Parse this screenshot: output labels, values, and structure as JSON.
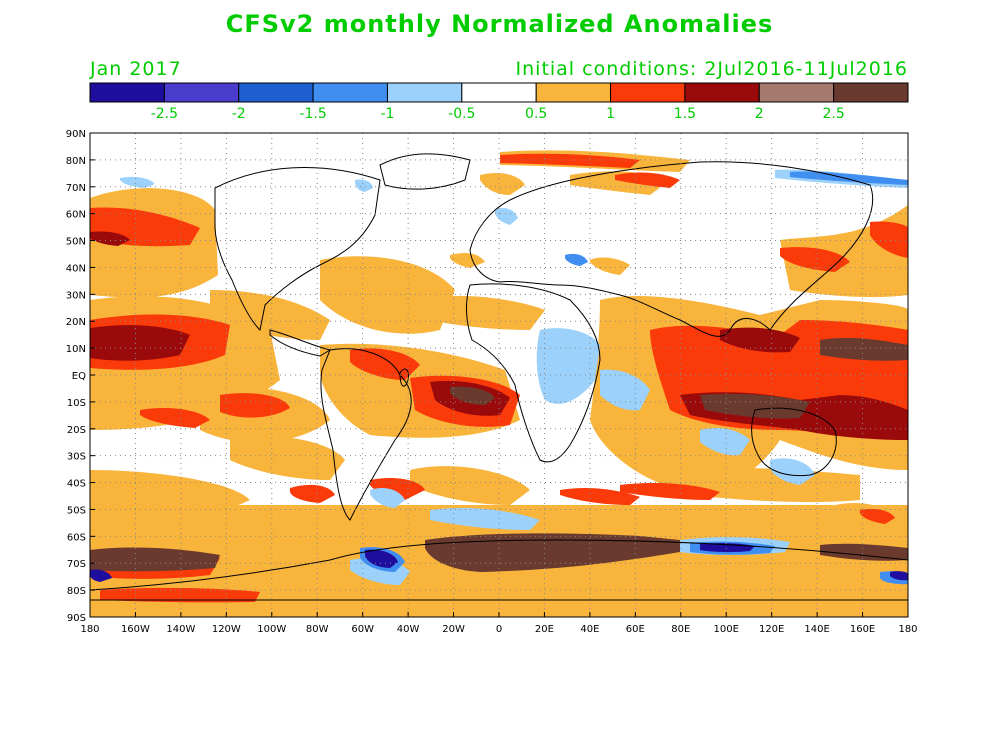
{
  "header": {
    "title": "CFSv2 monthly Normalized Anomalies",
    "period": "Jan 2017",
    "initial_conditions": "Initial conditions: 2Jul2016-11Jul2016",
    "text_color": "#00cc00"
  },
  "colorbar": {
    "colors": [
      "#1f0d9e",
      "#4a3ccc",
      "#1e5fd0",
      "#3f8ef0",
      "#9bd1fa",
      "#ffffff",
      "#f9b43b",
      "#fb3a0a",
      "#9a0a0a",
      "#a57a6e",
      "#6a3a2e"
    ],
    "tick_labels": [
      "-2.5",
      "-2",
      "-1.5",
      "-1",
      "-0.5",
      "0.5",
      "1",
      "1.5",
      "2",
      "2.5"
    ]
  },
  "map": {
    "lat_labels": [
      "90N",
      "80N",
      "70N",
      "60N",
      "50N",
      "40N",
      "30N",
      "20N",
      "10N",
      "EQ",
      "10S",
      "20S",
      "30S",
      "40S",
      "50S",
      "60S",
      "70S",
      "80S",
      "90S"
    ],
    "lon_labels": [
      "180",
      "160W",
      "140W",
      "120W",
      "100W",
      "80W",
      "60W",
      "40W",
      "20W",
      "0",
      "20E",
      "40E",
      "60E",
      "80E",
      "100E",
      "120E",
      "140E",
      "160E",
      "180"
    ],
    "lat_range": [
      -90,
      90
    ],
    "lon_range": [
      -180,
      180
    ],
    "grid": true
  }
}
